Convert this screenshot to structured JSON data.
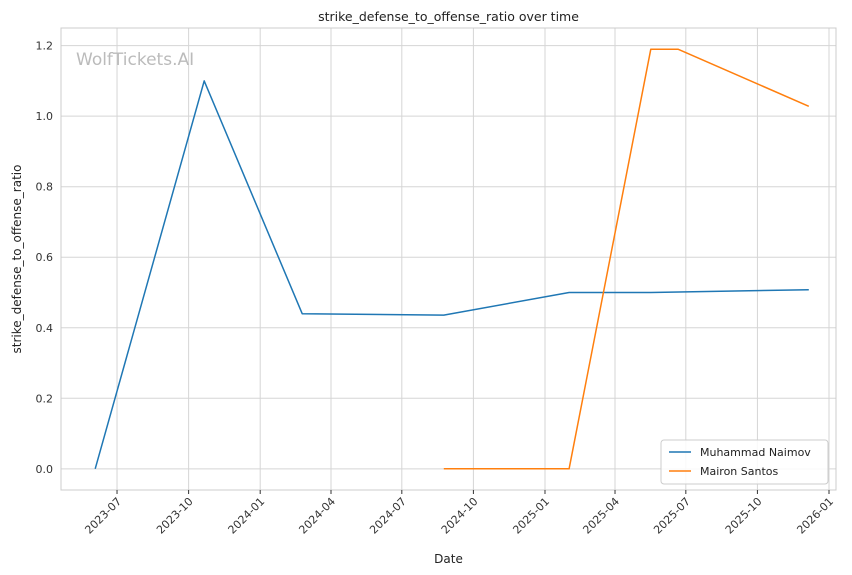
{
  "chart_data": {
    "type": "line",
    "title": "strike_defense_to_offense_ratio over time",
    "xlabel": "Date",
    "ylabel": "strike_defense_to_offense_ratio",
    "watermark": "WolfTickets.AI",
    "ylim": [
      -0.06,
      1.25
    ],
    "xlim": [
      "2023-04-20",
      "2026-01-10"
    ],
    "grid": true,
    "legend_position": "lower-right",
    "yticks": [
      0.0,
      0.2,
      0.4,
      0.6,
      0.8,
      1.0,
      1.2
    ],
    "ytick_labels": [
      "0.0",
      "0.2",
      "0.4",
      "0.6",
      "0.8",
      "1.0",
      "1.2"
    ],
    "xticks": [
      "2023-07-01",
      "2023-10-01",
      "2024-01-01",
      "2024-04-01",
      "2024-07-01",
      "2024-10-01",
      "2025-01-01",
      "2025-04-01",
      "2025-07-01",
      "2025-10-01",
      "2026-01-01"
    ],
    "xtick_labels": [
      "2023-07",
      "2023-10",
      "2024-01",
      "2024-04",
      "2024-07",
      "2024-10",
      "2025-01",
      "2025-04",
      "2025-07",
      "2025-10",
      "2026-01"
    ],
    "series": [
      {
        "name": "Muhammad Naimov",
        "color": "#1f77b4",
        "x": [
          "2023-06-03",
          "2023-10-21",
          "2024-02-24",
          "2024-08-24",
          "2025-02-01",
          "2025-05-17",
          "2025-12-06"
        ],
        "y": [
          0.0,
          1.1,
          0.44,
          0.436,
          0.5,
          0.5,
          0.508
        ]
      },
      {
        "name": "Mairon Santos",
        "color": "#ff7f0e",
        "x": [
          "2024-08-24",
          "2025-02-01",
          "2025-05-17",
          "2025-06-21",
          "2025-12-06"
        ],
        "y": [
          0.0,
          0.0,
          1.19,
          1.19,
          1.028
        ]
      }
    ]
  }
}
